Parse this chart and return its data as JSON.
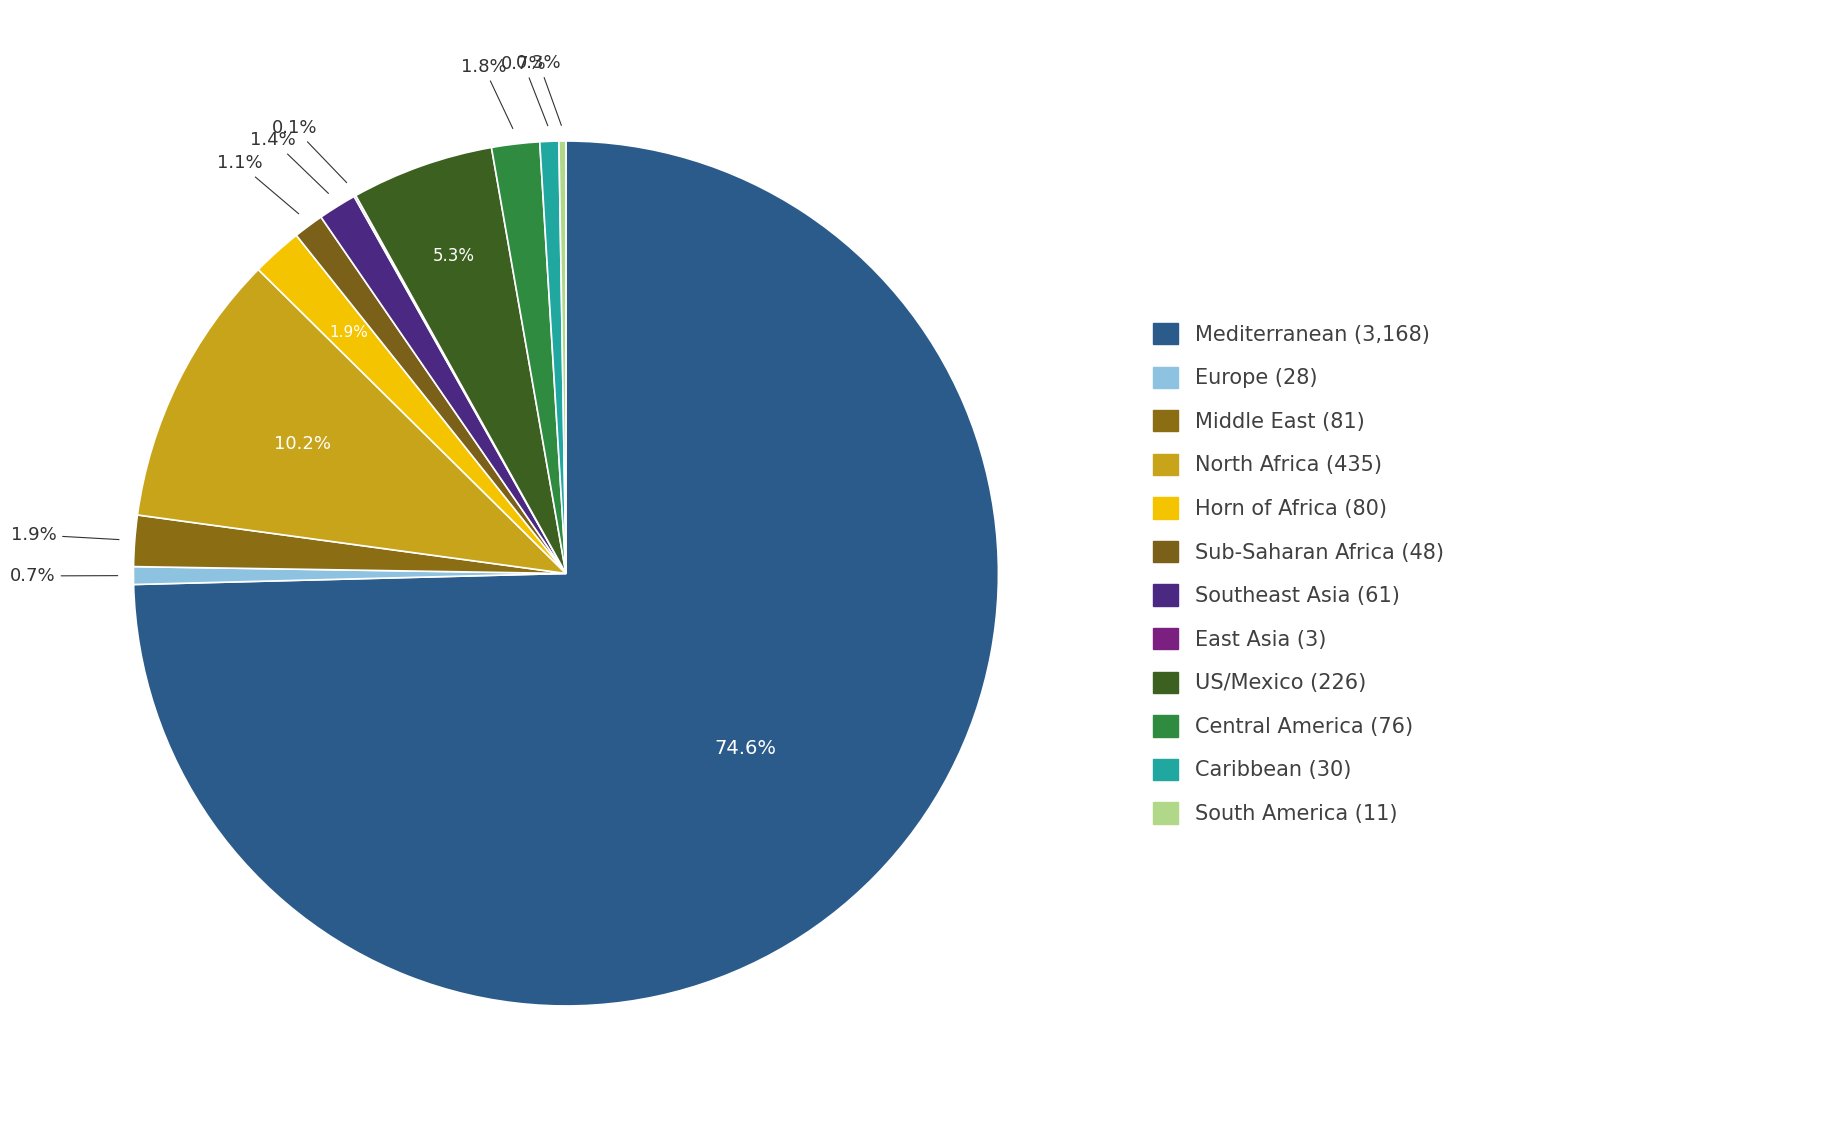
{
  "regions": [
    "Mediterranean (3,168)",
    "Europe (28)",
    "Middle East (81)",
    "North Africa (435)",
    "Horn of Africa (80)",
    "Sub-Saharan Africa (48)",
    "Southeast Asia (61)",
    "East Asia (3)",
    "US/Mexico (226)",
    "Central America (76)",
    "Caribbean (30)",
    "South America (11)"
  ],
  "values": [
    3168,
    28,
    81,
    435,
    80,
    48,
    61,
    3,
    226,
    76,
    30,
    11
  ],
  "percentages": [
    "74.6%",
    "0.7%",
    "1.9%",
    "10.2%",
    "1.9%",
    "1.1%",
    "1.4%",
    "0.1%",
    "5.3%",
    "1.8%",
    "0.7%",
    "0.3%"
  ],
  "colors": [
    "#2B5B8A",
    "#8DC3E0",
    "#8B6E14",
    "#C8A41A",
    "#F5C400",
    "#7A6018",
    "#4B2882",
    "#7B2080",
    "#3B6020",
    "#2E8B40",
    "#20A8A0",
    "#B0D888"
  ],
  "label_color": "#333333",
  "background_color": "#FFFFFF",
  "text_color": "#404040",
  "legend_fontsize": 15,
  "label_fontsize": 13,
  "inside_label_color": "white"
}
